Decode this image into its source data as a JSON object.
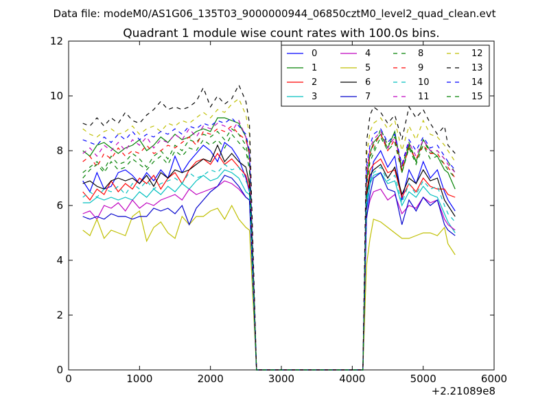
{
  "figure": {
    "suptitle": "Data file: modeM0/AS1G06_135T03_9000000944_06850cztM0_level2_quad_clean.evt"
  },
  "chart_data": {
    "type": "line",
    "title": "Quadrant 1 module wise count rates with 100.0s bins.",
    "xlabel": "",
    "ylabel": "",
    "xlim": [
      0,
      6000
    ],
    "ylim": [
      0,
      12
    ],
    "x_offset_label": "+2.21089e8",
    "xticks": [
      0,
      1000,
      2000,
      3000,
      4000,
      5000,
      6000
    ],
    "xtick_labels": [
      "0",
      "1000",
      "2000",
      "3000",
      "4000",
      "5000",
      "6000"
    ],
    "yticks": [
      0,
      2,
      4,
      6,
      8,
      10,
      12
    ],
    "ytick_labels": [
      "0",
      "2",
      "4",
      "6",
      "8",
      "10",
      "12"
    ],
    "grid": false,
    "legend_placement": "top-right",
    "x": [
      200,
      300,
      400,
      500,
      600,
      700,
      800,
      900,
      1000,
      1100,
      1200,
      1300,
      1400,
      1500,
      1600,
      1700,
      1800,
      1900,
      2000,
      2100,
      2200,
      2300,
      2400,
      2500,
      2550,
      2650,
      2750,
      2850,
      2950,
      3050,
      3150,
      3250,
      3350,
      3450,
      3550,
      3650,
      3750,
      3850,
      3950,
      4050,
      4150,
      4200,
      4250,
      4300,
      4400,
      4500,
      4600,
      4700,
      4800,
      4900,
      5000,
      5100,
      5200,
      5300,
      5350,
      5450
    ],
    "series": [
      {
        "name": "0",
        "color": "#0000ff",
        "dash": "solid",
        "values": [
          6.9,
          6.5,
          7.2,
          6.6,
          6.7,
          7.2,
          7.3,
          7.1,
          6.8,
          7.2,
          6.9,
          7.3,
          7.0,
          7.8,
          7.2,
          7.6,
          7.9,
          8.2,
          8.0,
          7.6,
          8.3,
          8.1,
          7.7,
          7.0,
          6.5,
          0,
          0,
          0,
          0,
          0,
          0,
          0,
          0,
          0,
          0,
          0,
          0,
          0,
          0,
          0,
          0,
          5.8,
          6.8,
          7.6,
          8.0,
          7.4,
          7.8,
          6.2,
          7.3,
          6.8,
          7.6,
          7.0,
          7.3,
          6.5,
          6.2,
          5.8
        ]
      },
      {
        "name": "1",
        "color": "#008000",
        "dash": "solid",
        "values": [
          8.0,
          7.8,
          8.2,
          8.3,
          8.1,
          7.9,
          8.1,
          8.2,
          8.4,
          8.0,
          8.2,
          8.5,
          8.3,
          8.6,
          8.4,
          8.5,
          8.7,
          8.8,
          8.7,
          9.2,
          9.2,
          9.1,
          9.0,
          8.5,
          7.8,
          0,
          0,
          0,
          0,
          0,
          0,
          0,
          0,
          0,
          0,
          0,
          0,
          0,
          0,
          0,
          0,
          6.8,
          7.9,
          8.3,
          8.6,
          8.1,
          8.7,
          7.2,
          8.2,
          7.6,
          8.4,
          8.0,
          7.8,
          7.3,
          7.2,
          6.6
        ]
      },
      {
        "name": "2",
        "color": "#ff0000",
        "dash": "solid",
        "values": [
          6.5,
          6.2,
          6.6,
          6.4,
          6.9,
          6.5,
          6.8,
          6.6,
          7.0,
          6.8,
          7.1,
          6.6,
          7.0,
          7.2,
          6.8,
          7.3,
          7.6,
          7.7,
          7.5,
          7.9,
          7.5,
          7.7,
          7.4,
          7.1,
          6.6,
          0,
          0,
          0,
          0,
          0,
          0,
          0,
          0,
          0,
          0,
          0,
          0,
          0,
          0,
          0,
          0,
          6.4,
          7.3,
          7.5,
          7.7,
          7.2,
          7.3,
          6.3,
          6.8,
          6.5,
          7.0,
          6.7,
          6.6,
          6.6,
          6.4,
          6.3
        ]
      },
      {
        "name": "3",
        "color": "#00bfbf",
        "dash": "solid",
        "values": [
          6.1,
          6.1,
          6.3,
          6.2,
          6.3,
          6.2,
          6.3,
          6.2,
          6.5,
          6.3,
          6.6,
          6.4,
          6.7,
          6.5,
          6.8,
          6.6,
          6.9,
          7.1,
          6.9,
          7.0,
          7.3,
          7.2,
          7.0,
          6.5,
          6.4,
          0,
          0,
          0,
          0,
          0,
          0,
          0,
          0,
          0,
          0,
          0,
          0,
          0,
          0,
          0,
          0,
          6.0,
          6.8,
          7.1,
          7.2,
          6.8,
          6.9,
          6.0,
          6.5,
          6.3,
          6.7,
          6.4,
          6.3,
          5.7,
          5.4,
          5.0
        ]
      },
      {
        "name": "4",
        "color": "#bf00bf",
        "dash": "solid",
        "values": [
          5.7,
          5.8,
          5.5,
          6.0,
          5.9,
          6.1,
          5.8,
          6.2,
          5.9,
          6.1,
          6.0,
          6.2,
          6.3,
          6.4,
          6.2,
          6.6,
          6.4,
          6.5,
          6.6,
          6.7,
          6.9,
          6.8,
          6.6,
          6.3,
          6.2,
          0,
          0,
          0,
          0,
          0,
          0,
          0,
          0,
          0,
          0,
          0,
          0,
          0,
          0,
          0,
          0,
          5.6,
          6.2,
          6.5,
          6.6,
          6.2,
          6.4,
          5.7,
          6.0,
          5.9,
          6.3,
          6.1,
          6.2,
          5.5,
          5.3,
          5.1
        ]
      },
      {
        "name": "5",
        "color": "#bfbf00",
        "dash": "solid",
        "values": [
          5.1,
          4.9,
          5.5,
          4.8,
          5.1,
          5.0,
          4.9,
          5.6,
          5.8,
          4.7,
          5.2,
          5.4,
          5.0,
          4.8,
          5.6,
          5.3,
          5.6,
          5.6,
          5.8,
          5.9,
          5.5,
          6.0,
          5.5,
          5.2,
          5.1,
          0,
          0,
          0,
          0,
          0,
          0,
          0,
          0,
          0,
          0,
          0,
          0,
          0,
          0,
          0,
          0,
          3.8,
          4.8,
          5.5,
          5.4,
          5.2,
          5.0,
          4.8,
          4.8,
          4.9,
          5.0,
          5.0,
          4.9,
          5.2,
          4.6,
          4.2
        ]
      },
      {
        "name": "6",
        "color": "#000000",
        "dash": "solid",
        "values": [
          6.8,
          6.9,
          6.7,
          6.6,
          6.9,
          7.0,
          6.9,
          7.0,
          6.8,
          7.1,
          6.7,
          7.2,
          7.0,
          7.3,
          7.2,
          7.3,
          7.5,
          7.7,
          7.6,
          8.2,
          7.6,
          7.9,
          7.6,
          7.4,
          6.8,
          0,
          0,
          0,
          0,
          0,
          0,
          0,
          0,
          0,
          0,
          0,
          0,
          0,
          0,
          0,
          0,
          6.3,
          7.1,
          7.3,
          7.5,
          7.0,
          7.4,
          6.4,
          7.0,
          6.8,
          7.3,
          6.9,
          7.0,
          6.2,
          6.0,
          5.6
        ]
      },
      {
        "name": "7",
        "color": "#0000cc",
        "dash": "solid",
        "values": [
          5.6,
          5.5,
          5.6,
          5.5,
          5.7,
          5.6,
          5.6,
          5.5,
          5.6,
          5.6,
          5.9,
          5.8,
          5.9,
          5.7,
          6.0,
          5.3,
          5.9,
          6.2,
          6.5,
          6.7,
          7.1,
          7.0,
          6.7,
          6.3,
          6.2,
          0,
          0,
          0,
          0,
          0,
          0,
          0,
          0,
          0,
          0,
          0,
          0,
          0,
          0,
          0,
          0,
          5.5,
          6.4,
          7.0,
          7.2,
          6.6,
          6.5,
          5.3,
          6.2,
          5.8,
          6.3,
          6.0,
          6.2,
          5.3,
          5.1,
          4.9
        ]
      },
      {
        "name": "8",
        "color": "#008000",
        "dash": "dashed",
        "values": [
          7.2,
          7.4,
          7.6,
          7.3,
          7.8,
          7.5,
          7.6,
          7.9,
          7.7,
          7.4,
          7.8,
          8.0,
          7.7,
          8.2,
          8.0,
          8.4,
          8.3,
          8.6,
          8.5,
          8.7,
          8.4,
          8.8,
          8.6,
          8.2,
          7.5,
          0,
          0,
          0,
          0,
          0,
          0,
          0,
          0,
          0,
          0,
          0,
          0,
          0,
          0,
          0,
          0,
          6.9,
          7.8,
          8.0,
          8.8,
          8.2,
          8.5,
          7.4,
          8.3,
          7.6,
          8.4,
          7.9,
          8.0,
          7.7,
          7.6,
          7.2
        ]
      },
      {
        "name": "9",
        "color": "#ff0000",
        "dash": "dashed",
        "values": [
          7.6,
          7.8,
          7.4,
          7.9,
          7.7,
          8.1,
          7.8,
          8.0,
          7.9,
          8.2,
          7.9,
          8.0,
          8.2,
          8.1,
          8.3,
          8.5,
          8.2,
          8.7,
          8.6,
          8.8,
          8.7,
          8.9,
          8.6,
          8.4,
          7.9,
          0,
          0,
          0,
          0,
          0,
          0,
          0,
          0,
          0,
          0,
          0,
          0,
          0,
          0,
          0,
          0,
          7.0,
          7.9,
          8.2,
          8.6,
          8.0,
          8.4,
          7.3,
          8.1,
          7.7,
          8.2,
          7.9,
          7.9,
          7.5,
          7.4,
          7.0
        ]
      },
      {
        "name": "10",
        "color": "#00bfbf",
        "dash": "dashed",
        "values": [
          6.3,
          6.5,
          6.3,
          6.6,
          6.5,
          6.7,
          6.4,
          6.8,
          6.6,
          6.9,
          6.6,
          6.8,
          6.9,
          7.0,
          6.8,
          7.2,
          7.0,
          7.1,
          7.3,
          7.2,
          7.5,
          7.3,
          7.4,
          6.9,
          6.6,
          0,
          0,
          0,
          0,
          0,
          0,
          0,
          0,
          0,
          0,
          0,
          0,
          0,
          0,
          0,
          0,
          6.2,
          6.9,
          7.2,
          7.4,
          6.9,
          7.1,
          6.1,
          6.8,
          6.4,
          6.9,
          6.6,
          6.7,
          6.0,
          5.7,
          5.4
        ]
      },
      {
        "name": "11",
        "color": "#bf00bf",
        "dash": "dashed",
        "values": [
          7.9,
          8.1,
          7.8,
          8.2,
          8.0,
          8.3,
          8.0,
          8.4,
          8.2,
          8.5,
          8.1,
          8.4,
          8.3,
          8.6,
          8.4,
          8.8,
          8.5,
          8.9,
          8.8,
          9.0,
          8.9,
          8.7,
          9.1,
          8.5,
          7.9,
          0,
          0,
          0,
          0,
          0,
          0,
          0,
          0,
          0,
          0,
          0,
          0,
          0,
          0,
          0,
          0,
          7.2,
          8.1,
          8.4,
          8.7,
          8.1,
          8.5,
          7.4,
          8.3,
          7.8,
          8.4,
          8.0,
          8.0,
          7.7,
          7.5,
          7.2
        ]
      },
      {
        "name": "12",
        "color": "#bfbf00",
        "dash": "dashed",
        "values": [
          8.8,
          8.6,
          8.5,
          8.7,
          8.8,
          8.6,
          8.7,
          8.9,
          8.6,
          8.8,
          8.9,
          8.7,
          9.0,
          8.9,
          9.1,
          9.0,
          9.2,
          9.4,
          9.2,
          9.5,
          9.4,
          9.7,
          9.9,
          9.3,
          8.6,
          0,
          0,
          0,
          0,
          0,
          0,
          0,
          0,
          0,
          0,
          0,
          0,
          0,
          0,
          0,
          0,
          7.8,
          8.7,
          9.0,
          9.2,
          8.8,
          9.1,
          8.0,
          8.9,
          8.4,
          9.1,
          8.6,
          8.5,
          8.2,
          8.0,
          7.6
        ]
      },
      {
        "name": "13",
        "color": "#000000",
        "dash": "dashed",
        "values": [
          9.0,
          8.9,
          9.2,
          8.9,
          9.2,
          9.0,
          9.4,
          9.1,
          9.0,
          9.3,
          9.5,
          9.8,
          9.5,
          9.6,
          9.5,
          9.6,
          9.8,
          10.3,
          9.6,
          10.0,
          9.7,
          9.9,
          10.4,
          9.8,
          9.0,
          0,
          0,
          0,
          0,
          0,
          0,
          0,
          0,
          0,
          0,
          0,
          0,
          0,
          0,
          0,
          0,
          8.3,
          9.3,
          9.6,
          9.4,
          9.0,
          9.3,
          8.4,
          9.6,
          9.2,
          9.5,
          9.0,
          8.6,
          8.9,
          8.2,
          7.9
        ]
      },
      {
        "name": "14",
        "color": "#0000ff",
        "dash": "dashed",
        "values": [
          8.4,
          8.3,
          8.2,
          8.5,
          8.3,
          8.6,
          8.4,
          8.7,
          8.4,
          8.6,
          8.5,
          8.7,
          8.6,
          8.8,
          8.6,
          8.9,
          8.8,
          9.0,
          8.9,
          9.1,
          9.0,
          9.2,
          8.9,
          8.6,
          8.0,
          0,
          0,
          0,
          0,
          0,
          0,
          0,
          0,
          0,
          0,
          0,
          0,
          0,
          0,
          0,
          0,
          7.4,
          8.2,
          8.6,
          8.8,
          8.3,
          8.6,
          7.5,
          8.4,
          8.0,
          8.5,
          8.1,
          8.2,
          7.8,
          7.6,
          7.3
        ]
      },
      {
        "name": "15",
        "color": "#008000",
        "dash": "dashed",
        "values": [
          7.0,
          7.3,
          7.5,
          7.2,
          7.6,
          7.3,
          7.4,
          7.7,
          7.5,
          7.3,
          7.6,
          7.8,
          7.5,
          8.0,
          7.8,
          8.1,
          8.0,
          8.4,
          8.2,
          8.4,
          8.1,
          8.6,
          8.3,
          8.0,
          7.3,
          0,
          0,
          0,
          0,
          0,
          0,
          0,
          0,
          0,
          0,
          0,
          0,
          0,
          0,
          0,
          0,
          6.7,
          7.6,
          7.9,
          8.5,
          8.0,
          8.3,
          7.2,
          8.1,
          7.5,
          8.2,
          7.7,
          7.8,
          7.5,
          7.3,
          7.0
        ]
      }
    ]
  }
}
